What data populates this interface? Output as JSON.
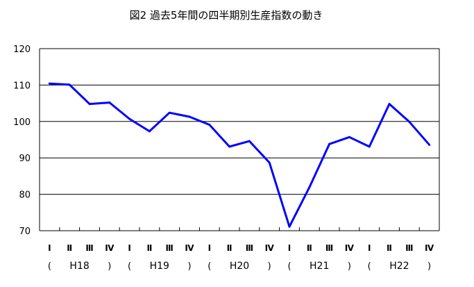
{
  "chart_data": {
    "type": "line",
    "title": "図2 過去5年間の四半期別生産指数の動き",
    "ylim": [
      70,
      120
    ],
    "yticks": [
      70,
      80,
      90,
      100,
      110,
      120
    ],
    "grid": true,
    "quarter_labels": [
      "Ⅰ",
      "Ⅱ",
      "Ⅲ",
      "Ⅳ",
      "Ⅰ",
      "Ⅱ",
      "Ⅲ",
      "Ⅳ",
      "Ⅰ",
      "Ⅱ",
      "Ⅲ",
      "Ⅳ",
      "Ⅰ",
      "Ⅱ",
      "Ⅲ",
      "Ⅳ",
      "Ⅰ",
      "Ⅱ",
      "Ⅲ",
      "Ⅳ"
    ],
    "year_groups": [
      {
        "open": "(",
        "label": "H18",
        "close": ")"
      },
      {
        "open": "(",
        "label": "H19",
        "close": ")"
      },
      {
        "open": "(",
        "label": "H20",
        "close": ")"
      },
      {
        "open": "(",
        "label": "H21",
        "close": ")"
      },
      {
        "open": "(",
        "label": "H22",
        "close": ")"
      }
    ],
    "series": [
      {
        "values": [
          110.4,
          110.1,
          104.8,
          105.2,
          100.7,
          97.3,
          102.4,
          101.3,
          99.1,
          93.1,
          94.6,
          88.7,
          71.1,
          81.9,
          93.8,
          95.7,
          93.1,
          104.8,
          99.9,
          93.6
        ],
        "color": "#0000ff"
      }
    ]
  }
}
